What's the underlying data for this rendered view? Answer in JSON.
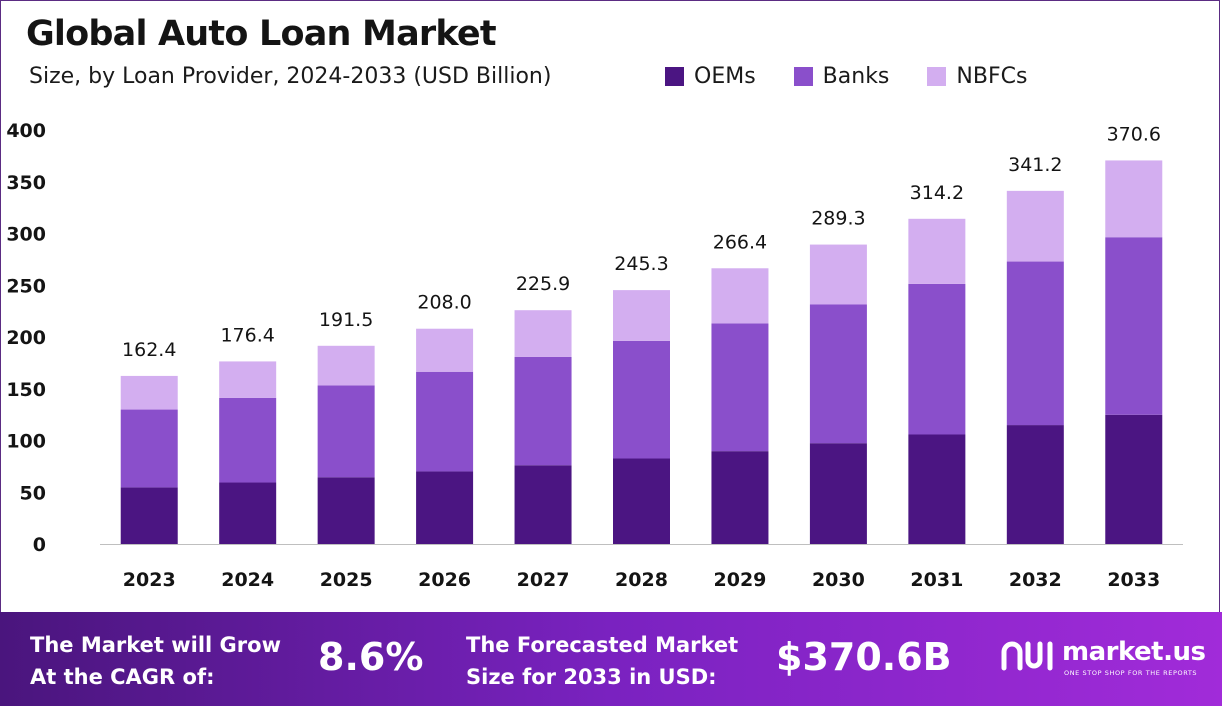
{
  "title": "Global Auto Loan Market",
  "subtitle": "Size, by Loan Provider, 2024-2033 (USD Billion)",
  "colors": {
    "oems": "#4b1582",
    "banks": "#8a4fcb",
    "nbfcs": "#d3aef0",
    "axis": "#bfbfbf",
    "text": "#141414"
  },
  "chart_data": {
    "type": "bar",
    "stacked": true,
    "categories": [
      "2023",
      "2024",
      "2025",
      "2026",
      "2027",
      "2028",
      "2029",
      "2030",
      "2031",
      "2032",
      "2033"
    ],
    "series": [
      {
        "name": "OEMs",
        "color": "#4b1582",
        "values": [
          54.7,
          59.4,
          64.5,
          70.1,
          76.1,
          82.6,
          89.7,
          97.4,
          105.8,
          114.9,
          124.8
        ]
      },
      {
        "name": "Banks",
        "color": "#8a4fcb",
        "values": [
          75.2,
          81.7,
          88.7,
          96.3,
          104.6,
          113.6,
          123.4,
          134.0,
          145.5,
          158.0,
          171.6
        ]
      },
      {
        "name": "NBFCs",
        "color": "#d3aef0",
        "values": [
          32.5,
          35.3,
          38.3,
          41.6,
          45.2,
          49.1,
          53.3,
          57.9,
          62.9,
          68.3,
          74.2
        ]
      }
    ],
    "totals": [
      "162.4",
      "176.4",
      "191.5",
      "208.0",
      "225.9",
      "245.3",
      "266.4",
      "289.3",
      "314.2",
      "341.2",
      "370.6"
    ],
    "y_ticks": [
      "0",
      "50",
      "100",
      "150",
      "200",
      "250",
      "300",
      "350",
      "400"
    ],
    "ylim": [
      0,
      400
    ],
    "grid": false,
    "legend_position": "top-right"
  },
  "banner": {
    "cagr_line1": "The Market will Grow",
    "cagr_line2": "At the CAGR of:",
    "cagr_value": "8.6%",
    "forecast_line1": "The Forecasted Market",
    "forecast_line2": "Size for 2033 in USD:",
    "forecast_value": "$370.6B",
    "logo_name": "market.us",
    "logo_tagline": "ONE STOP SHOP FOR THE REPORTS"
  }
}
